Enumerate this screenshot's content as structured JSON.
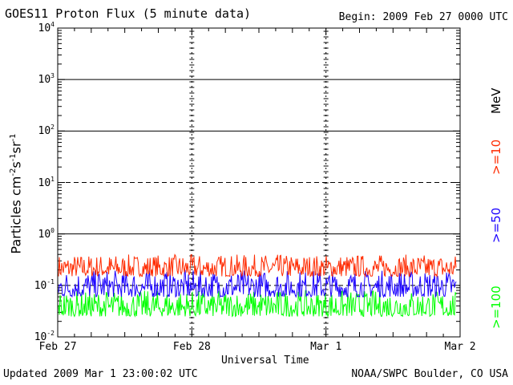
{
  "header": {
    "title": "GOES11 Proton Flux (5 minute data)",
    "begin": "Begin: 2009 Feb 27 0000 UTC"
  },
  "footer": {
    "updated": "Updated 2009 Mar  1 23:00:02 UTC",
    "credit": "NOAA/SWPC Boulder, CO USA"
  },
  "chart_data": {
    "type": "line",
    "xlabel": "Universal Time",
    "ylabel_main": "Particles cm",
    "x_ticks": [
      "Feb 27",
      "Feb 28",
      "Mar 1",
      "Mar 2"
    ],
    "y_scale": "log",
    "ylim": [
      0.01,
      10000
    ],
    "y_ticks": [
      {
        "base": "10",
        "exp": "-2"
      },
      {
        "base": "10",
        "exp": "-1"
      },
      {
        "base": "10",
        "exp": "0"
      },
      {
        "base": "10",
        "exp": "1"
      },
      {
        "base": "10",
        "exp": "2"
      },
      {
        "base": "10",
        "exp": "3"
      },
      {
        "base": "10",
        "exp": "4"
      }
    ],
    "legend_unit": "MeV",
    "series": [
      {
        "name": ">=10",
        "color": "#ff2a00",
        "typical_range": [
          0.15,
          0.4
        ]
      },
      {
        "name": ">=50",
        "color": "#1a00ff",
        "typical_range": [
          0.06,
          0.2
        ]
      },
      {
        "name": ">=100",
        "color": "#00ff00",
        "typical_range": [
          0.025,
          0.08
        ]
      }
    ]
  }
}
